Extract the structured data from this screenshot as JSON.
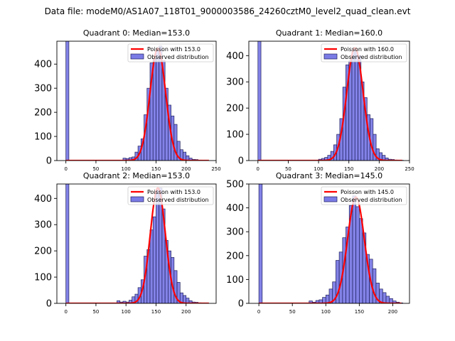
{
  "suptitle": "Data file: modeM0/AS1A07_118T01_9000003586_24260cztM0_level2_quad_clean.evt",
  "colors": {
    "bar_fill": "#7b7be6",
    "bar_edge": "#1f1f5c",
    "fit_line": "#ff0000",
    "axis": "#000000"
  },
  "chart_data": [
    {
      "type": "bar",
      "title": "Quadrant 0: Median=153.0",
      "xlim": [
        -15,
        250
      ],
      "ylim": [
        0,
        495
      ],
      "xticks": [
        0,
        50,
        100,
        150,
        200,
        250
      ],
      "yticks": [
        0,
        100,
        200,
        300,
        400
      ],
      "bin_width": 5,
      "legend_position": "top-right",
      "series": [
        {
          "name": "Observed distribution",
          "bins_left": [
            0,
            95,
            100,
            105,
            110,
            115,
            120,
            125,
            130,
            135,
            140,
            145,
            150,
            155,
            160,
            165,
            170,
            175,
            180,
            185,
            190,
            195,
            200,
            205,
            210,
            215,
            220,
            225,
            230
          ],
          "values": [
            495,
            10,
            8,
            12,
            15,
            35,
            60,
            90,
            190,
            300,
            405,
            420,
            460,
            475,
            415,
            300,
            230,
            185,
            150,
            80,
            45,
            35,
            20,
            10,
            5,
            4,
            2,
            1,
            1
          ]
        },
        {
          "name": "Poisson with 153.0",
          "mean": 153.0,
          "peak": 465,
          "sigma": 13
        }
      ]
    },
    {
      "type": "bar",
      "title": "Quadrant 1: Median=160.0",
      "xlim": [
        -15,
        250
      ],
      "ylim": [
        0,
        455
      ],
      "xticks": [
        0,
        50,
        100,
        150,
        200,
        250
      ],
      "yticks": [
        0,
        100,
        200,
        300,
        400
      ],
      "bin_width": 5,
      "legend_position": "top-right",
      "series": [
        {
          "name": "Observed distribution",
          "bins_left": [
            0,
            100,
            105,
            110,
            115,
            120,
            125,
            130,
            135,
            140,
            145,
            150,
            155,
            160,
            165,
            170,
            175,
            180,
            185,
            190,
            195,
            200,
            205,
            210,
            215,
            220,
            225,
            230,
            235
          ],
          "values": [
            455,
            5,
            8,
            12,
            20,
            35,
            60,
            100,
            160,
            280,
            365,
            380,
            420,
            415,
            400,
            300,
            240,
            175,
            160,
            100,
            45,
            30,
            20,
            10,
            5,
            4,
            2,
            1,
            1
          ]
        },
        {
          "name": "Poisson with 160.0",
          "mean": 160.0,
          "peak": 430,
          "sigma": 13.5
        }
      ]
    },
    {
      "type": "bar",
      "title": "Quadrant 2: Median=153.0",
      "xlim": [
        -15,
        250
      ],
      "ylim": [
        0,
        455
      ],
      "xticks": [
        0,
        50,
        100,
        150,
        200
      ],
      "yticks": [
        0,
        100,
        200,
        300,
        400
      ],
      "bin_width": 5,
      "legend_position": "top-right",
      "series": [
        {
          "name": "Observed distribution",
          "bins_left": [
            0,
            85,
            90,
            95,
            100,
            105,
            110,
            115,
            120,
            125,
            130,
            135,
            140,
            145,
            150,
            155,
            160,
            165,
            170,
            175,
            180,
            185,
            190,
            195,
            200,
            205,
            210,
            215,
            220,
            225,
            230
          ],
          "values": [
            455,
            10,
            5,
            8,
            5,
            12,
            25,
            35,
            60,
            90,
            180,
            205,
            280,
            330,
            435,
            440,
            360,
            240,
            200,
            175,
            125,
            80,
            40,
            30,
            20,
            10,
            5,
            4,
            2,
            1,
            1
          ]
        },
        {
          "name": "Poisson with 153.0",
          "mean": 153.0,
          "peak": 440,
          "sigma": 12.5
        }
      ]
    },
    {
      "type": "bar",
      "title": "Quadrant 3: Median=145.0",
      "xlim": [
        -15,
        225
      ],
      "ylim": [
        0,
        500
      ],
      "xticks": [
        0,
        50,
        100,
        150,
        200
      ],
      "yticks": [
        0,
        100,
        200,
        300,
        400,
        500
      ],
      "bin_width": 5,
      "legend_position": "top-right",
      "series": [
        {
          "name": "Observed distribution",
          "bins_left": [
            0,
            75,
            80,
            85,
            90,
            95,
            100,
            105,
            110,
            115,
            120,
            125,
            130,
            135,
            140,
            145,
            150,
            155,
            160,
            165,
            170,
            175,
            180,
            185,
            190,
            195,
            200,
            205,
            210
          ],
          "values": [
            500,
            10,
            5,
            12,
            15,
            25,
            35,
            60,
            90,
            180,
            215,
            275,
            320,
            410,
            450,
            405,
            355,
            295,
            205,
            185,
            145,
            85,
            60,
            45,
            30,
            20,
            10,
            5,
            2
          ]
        },
        {
          "name": "Poisson with 145.0",
          "mean": 145.0,
          "peak": 445,
          "sigma": 12.5
        }
      ]
    }
  ]
}
